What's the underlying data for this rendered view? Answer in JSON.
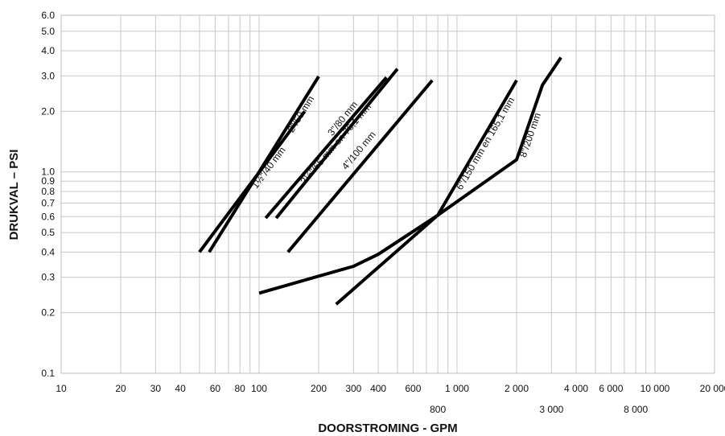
{
  "chart_data": {
    "type": "line",
    "xscale": "log",
    "yscale": "log",
    "xlim": [
      10,
      20000
    ],
    "ylim": [
      0.1,
      6.0
    ],
    "xlabel": "DOORSTROMING - GPM",
    "ylabel": "DRUKVAL – PSI",
    "grid": true,
    "x_ticks_upper": [
      {
        "v": 10,
        "label": "10"
      },
      {
        "v": 20,
        "label": "20"
      },
      {
        "v": 30,
        "label": "30"
      },
      {
        "v": 40,
        "label": "40"
      },
      {
        "v": 60,
        "label": "60"
      },
      {
        "v": 80,
        "label": "80"
      },
      {
        "v": 100,
        "label": "100"
      },
      {
        "v": 200,
        "label": "200"
      },
      {
        "v": 300,
        "label": "300"
      },
      {
        "v": 400,
        "label": "400"
      },
      {
        "v": 600,
        "label": "600"
      },
      {
        "v": 1000,
        "label": "1 000"
      },
      {
        "v": 2000,
        "label": "2 000"
      },
      {
        "v": 4000,
        "label": "4 000"
      },
      {
        "v": 6000,
        "label": "6 000"
      },
      {
        "v": 10000,
        "label": "10 000"
      },
      {
        "v": 20000,
        "label": "20 000"
      }
    ],
    "x_ticks_lower": [
      {
        "v": 800,
        "label": "800"
      },
      {
        "v": 3000,
        "label": "3 000"
      },
      {
        "v": 8000,
        "label": "8 000"
      }
    ],
    "y_ticks": [
      {
        "v": 0.1,
        "label": "0.1"
      },
      {
        "v": 0.2,
        "label": "0.2"
      },
      {
        "v": 0.3,
        "label": "0.3"
      },
      {
        "v": 0.4,
        "label": "0.4"
      },
      {
        "v": 0.5,
        "label": "0.5"
      },
      {
        "v": 0.6,
        "label": "0.6"
      },
      {
        "v": 0.7,
        "label": "0.7"
      },
      {
        "v": 0.8,
        "label": "0.8"
      },
      {
        "v": 0.9,
        "label": "0.9"
      },
      {
        "v": 1.0,
        "label": "1.0"
      },
      {
        "v": 2.0,
        "label": "2.0"
      },
      {
        "v": 3.0,
        "label": "3.0"
      },
      {
        "v": 4.0,
        "label": "4.0"
      },
      {
        "v": 5.0,
        "label": "5.0"
      },
      {
        "v": 6.0,
        "label": "6.0"
      }
    ],
    "series": [
      {
        "name": "1½\"/40 mm",
        "points": [
          [
            50,
            0.4
          ],
          [
            170,
            2.0
          ]
        ]
      },
      {
        "name": "2\"/50 mm",
        "points": [
          [
            56,
            0.4
          ],
          [
            200,
            2.98
          ]
        ]
      },
      {
        "name": "2½\"/65 mm en 76,1 mm",
        "points": [
          [
            108,
            0.59
          ],
          [
            440,
            2.95
          ]
        ]
      },
      {
        "name": "3\"/80 mm",
        "points": [
          [
            122,
            0.59
          ],
          [
            500,
            3.25
          ]
        ]
      },
      {
        "name": "4\"/100 mm",
        "points": [
          [
            140,
            0.4
          ],
          [
            750,
            2.85
          ]
        ]
      },
      {
        "name": "6\"/150 mm en 165,1 mm",
        "points": [
          [
            245,
            0.22
          ],
          [
            800,
            0.61
          ],
          [
            2000,
            2.85
          ]
        ]
      },
      {
        "name": "8\"/200 mm",
        "points": [
          [
            100,
            0.25
          ],
          [
            300,
            0.34
          ],
          [
            400,
            0.39
          ],
          [
            800,
            0.61
          ],
          [
            2000,
            1.15
          ],
          [
            2700,
            2.7
          ],
          [
            3350,
            3.7
          ]
        ]
      }
    ]
  }
}
